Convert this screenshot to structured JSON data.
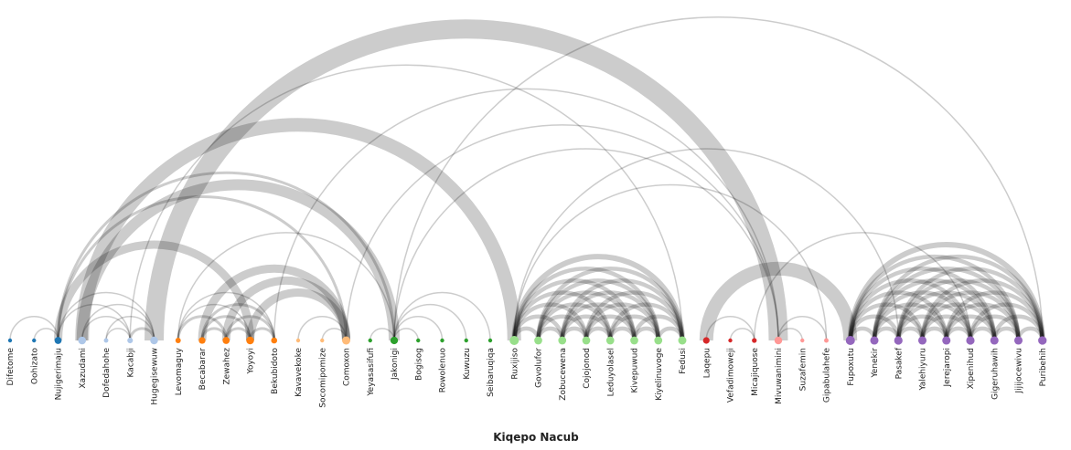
{
  "diagram": {
    "title": "Kiqepo Nacub",
    "type": "arc-diagram",
    "groups": [
      {
        "color": "#1f77b4",
        "nodes": [
          "Difetome",
          "Oohizato",
          "Nujigerimaju"
        ]
      },
      {
        "color": "#aec7e8",
        "nodes": [
          "Xazudami",
          "Dofedahohe",
          "Kacabji",
          "Hugegisewuw"
        ]
      },
      {
        "color": "#ff7f0e",
        "nodes": [
          "Levomaguy",
          "Becabarar",
          "Zewahez",
          "Yoyoyi",
          "Bekubidoto"
        ]
      },
      {
        "color": "#ffbb78",
        "nodes": [
          "Kavavekoke",
          "Socomipomize",
          "Comoxon"
        ]
      },
      {
        "color": "#2ca02c",
        "nodes": [
          "Yeyasasifufi",
          "Jakonigi",
          "Bogisog",
          "Rowolenuo",
          "Kuwuzu",
          "Seibaruqiqa"
        ]
      },
      {
        "color": "#98df8a",
        "nodes": [
          "Ruxijiso",
          "Govolufor",
          "Zobucewena",
          "Cojojonod",
          "Leduyolasel",
          "Kivepuwud",
          "Kiyelinuvoge",
          "Fedusi"
        ]
      },
      {
        "color": "#d62728",
        "nodes": [
          "Laqepu",
          "Vefadimoweji",
          "Micajiquose"
        ]
      },
      {
        "color": "#ff9896",
        "nodes": [
          "Mivuwanimini",
          "Suzafemin",
          "Gipabulahefe"
        ]
      },
      {
        "color": "#9467bd",
        "nodes": [
          "Fupoxutu",
          "Yenekir",
          "Pasakef",
          "Yalehiyuru",
          "Jerejaropi",
          "Xipenihud",
          "Gigeruhawih",
          "Jijijocewivu",
          "Puribehih"
        ]
      }
    ],
    "links": [
      [
        "Difetome",
        "Nujigerimaju",
        1
      ],
      [
        "Oohizato",
        "Nujigerimaju",
        1
      ],
      [
        "Nujigerimaju",
        "Kacabji",
        1
      ],
      [
        "Nujigerimaju",
        "Hugegisewuw",
        1
      ],
      [
        "Nujigerimaju",
        "Yoyoyi",
        6
      ],
      [
        "Nujigerimaju",
        "Jakonigi",
        2
      ],
      [
        "Nujigerimaju",
        "Comoxon",
        2
      ],
      [
        "Xazudami",
        "Hugegisewuw",
        1
      ],
      [
        "Dofedahohe",
        "Kacabji",
        1
      ],
      [
        "Xazudami",
        "Jakonigi",
        8
      ],
      [
        "Xazudami",
        "Ruxijiso",
        10
      ],
      [
        "Kacabji",
        "Hugegisewuw",
        2
      ],
      [
        "Dofedahohe",
        "Hugegisewuw",
        1
      ],
      [
        "Xazudami",
        "Kacabji",
        1
      ],
      [
        "Hugegisewuw",
        "Mivuwanimini",
        14
      ],
      [
        "Kacabji",
        "Fedusi",
        1
      ],
      [
        "Levomaguy",
        "Zewahez",
        2
      ],
      [
        "Levomaguy",
        "Yoyoyi",
        1
      ],
      [
        "Levomaguy",
        "Bekubidoto",
        1
      ],
      [
        "Becabarar",
        "Zewahez",
        2
      ],
      [
        "Becabarar",
        "Yoyoyi",
        2
      ],
      [
        "Becabarar",
        "Bekubidoto",
        2
      ],
      [
        "Zewahez",
        "Yoyoyi",
        2
      ],
      [
        "Zewahez",
        "Bekubidoto",
        2
      ],
      [
        "Yoyoyi",
        "Bekubidoto",
        2
      ],
      [
        "Becabarar",
        "Comoxon",
        6
      ],
      [
        "Zewahez",
        "Comoxon",
        6
      ],
      [
        "Yoyoyi",
        "Comoxon",
        6
      ],
      [
        "Levomaguy",
        "Jakonigi",
        1
      ],
      [
        "Kavavekoke",
        "Comoxon",
        1
      ],
      [
        "Socomipomize",
        "Comoxon",
        1
      ],
      [
        "Comoxon",
        "Mivuwanimini",
        1
      ],
      [
        "Bekubidoto",
        "Mivuwanimini",
        1
      ],
      [
        "Yeyasasifufi",
        "Jakonigi",
        1
      ],
      [
        "Jakonigi",
        "Bogisog",
        1
      ],
      [
        "Jakonigi",
        "Rowolenuo",
        1
      ],
      [
        "Jakonigi",
        "Kuwuzu",
        1
      ],
      [
        "Jakonigi",
        "Seibaruqiqa",
        1
      ],
      [
        "Jakonigi",
        "Mivuwanimini",
        1
      ],
      [
        "Jakonigi",
        "Puribehih",
        1
      ],
      [
        "Ruxijiso",
        "Fedusi",
        4
      ],
      [
        "Ruxijiso",
        "Kiyelinuvoge",
        3
      ],
      [
        "Ruxijiso",
        "Kivepuwud",
        3
      ],
      [
        "Ruxijiso",
        "Leduyolasel",
        3
      ],
      [
        "Ruxijiso",
        "Cojojonod",
        3
      ],
      [
        "Ruxijiso",
        "Zobucewena",
        3
      ],
      [
        "Govolufor",
        "Fedusi",
        3
      ],
      [
        "Govolufor",
        "Kiyelinuvoge",
        3
      ],
      [
        "Govolufor",
        "Kivepuwud",
        3
      ],
      [
        "Govolufor",
        "Leduyolasel",
        3
      ],
      [
        "Govolufor",
        "Cojojonod",
        3
      ],
      [
        "Govolufor",
        "Zobucewena",
        3
      ],
      [
        "Zobucewena",
        "Fedusi",
        3
      ],
      [
        "Zobucewena",
        "Kiyelinuvoge",
        3
      ],
      [
        "Zobucewena",
        "Kivepuwud",
        3
      ],
      [
        "Zobucewena",
        "Leduyolasel",
        3
      ],
      [
        "Zobucewena",
        "Cojojonod",
        3
      ],
      [
        "Cojojonod",
        "Fedusi",
        3
      ],
      [
        "Cojojonod",
        "Kiyelinuvoge",
        3
      ],
      [
        "Cojojonod",
        "Kivepuwud",
        3
      ],
      [
        "Cojojonod",
        "Leduyolasel",
        3
      ],
      [
        "Leduyolasel",
        "Fedusi",
        3
      ],
      [
        "Leduyolasel",
        "Kiyelinuvoge",
        3
      ],
      [
        "Leduyolasel",
        "Kivepuwud",
        3
      ],
      [
        "Kivepuwud",
        "Fedusi",
        3
      ],
      [
        "Kivepuwud",
        "Kiyelinuvoge",
        3
      ],
      [
        "Kiyelinuvoge",
        "Fedusi",
        3
      ],
      [
        "Ruxijiso",
        "Govolufor",
        3
      ],
      [
        "Ruxijiso",
        "Pasakef",
        1
      ],
      [
        "Ruxijiso",
        "Gipabulahefe",
        1
      ],
      [
        "Laqepu",
        "Micajiquose",
        1
      ],
      [
        "Vefadimoweji",
        "Micajiquose",
        1
      ],
      [
        "Laqepu",
        "Fupoxutu",
        10
      ],
      [
        "Mivuwanimini",
        "Gipabulahefe",
        1
      ],
      [
        "Suzafemin",
        "Mivuwanimini",
        1
      ],
      [
        "Micajiquose",
        "Xipenihud",
        1
      ],
      [
        "Fupoxutu",
        "Puribehih",
        4
      ],
      [
        "Fupoxutu",
        "Jijijocewivu",
        3
      ],
      [
        "Fupoxutu",
        "Gigeruhawih",
        3
      ],
      [
        "Fupoxutu",
        "Xipenihud",
        3
      ],
      [
        "Fupoxutu",
        "Jerejaropi",
        3
      ],
      [
        "Fupoxutu",
        "Yalehiyuru",
        3
      ],
      [
        "Fupoxutu",
        "Pasakef",
        3
      ],
      [
        "Fupoxutu",
        "Yenekir",
        3
      ],
      [
        "Yenekir",
        "Puribehih",
        3
      ],
      [
        "Yenekir",
        "Jijijocewivu",
        3
      ],
      [
        "Yenekir",
        "Gigeruhawih",
        3
      ],
      [
        "Yenekir",
        "Xipenihud",
        3
      ],
      [
        "Yenekir",
        "Jerejaropi",
        3
      ],
      [
        "Yenekir",
        "Yalehiyuru",
        3
      ],
      [
        "Yenekir",
        "Pasakef",
        3
      ],
      [
        "Pasakef",
        "Puribehih",
        3
      ],
      [
        "Pasakef",
        "Jijijocewivu",
        3
      ],
      [
        "Pasakef",
        "Gigeruhawih",
        3
      ],
      [
        "Pasakef",
        "Xipenihud",
        3
      ],
      [
        "Pasakef",
        "Jerejaropi",
        3
      ],
      [
        "Pasakef",
        "Yalehiyuru",
        3
      ],
      [
        "Yalehiyuru",
        "Puribehih",
        3
      ],
      [
        "Yalehiyuru",
        "Jijijocewivu",
        3
      ],
      [
        "Yalehiyuru",
        "Gigeruhawih",
        3
      ],
      [
        "Yalehiyuru",
        "Xipenihud",
        3
      ],
      [
        "Yalehiyuru",
        "Jerejaropi",
        3
      ],
      [
        "Jerejaropi",
        "Puribehih",
        3
      ],
      [
        "Jerejaropi",
        "Jijijocewivu",
        3
      ],
      [
        "Jerejaropi",
        "Gigeruhawih",
        3
      ],
      [
        "Jerejaropi",
        "Xipenihud",
        3
      ],
      [
        "Xipenihud",
        "Puribehih",
        3
      ],
      [
        "Xipenihud",
        "Jijijocewivu",
        3
      ],
      [
        "Xipenihud",
        "Gigeruhawih",
        3
      ],
      [
        "Gigeruhawih",
        "Puribehih",
        3
      ],
      [
        "Gigeruhawih",
        "Jijijocewivu",
        3
      ],
      [
        "Jijijocewivu",
        "Puribehih",
        3
      ]
    ]
  }
}
